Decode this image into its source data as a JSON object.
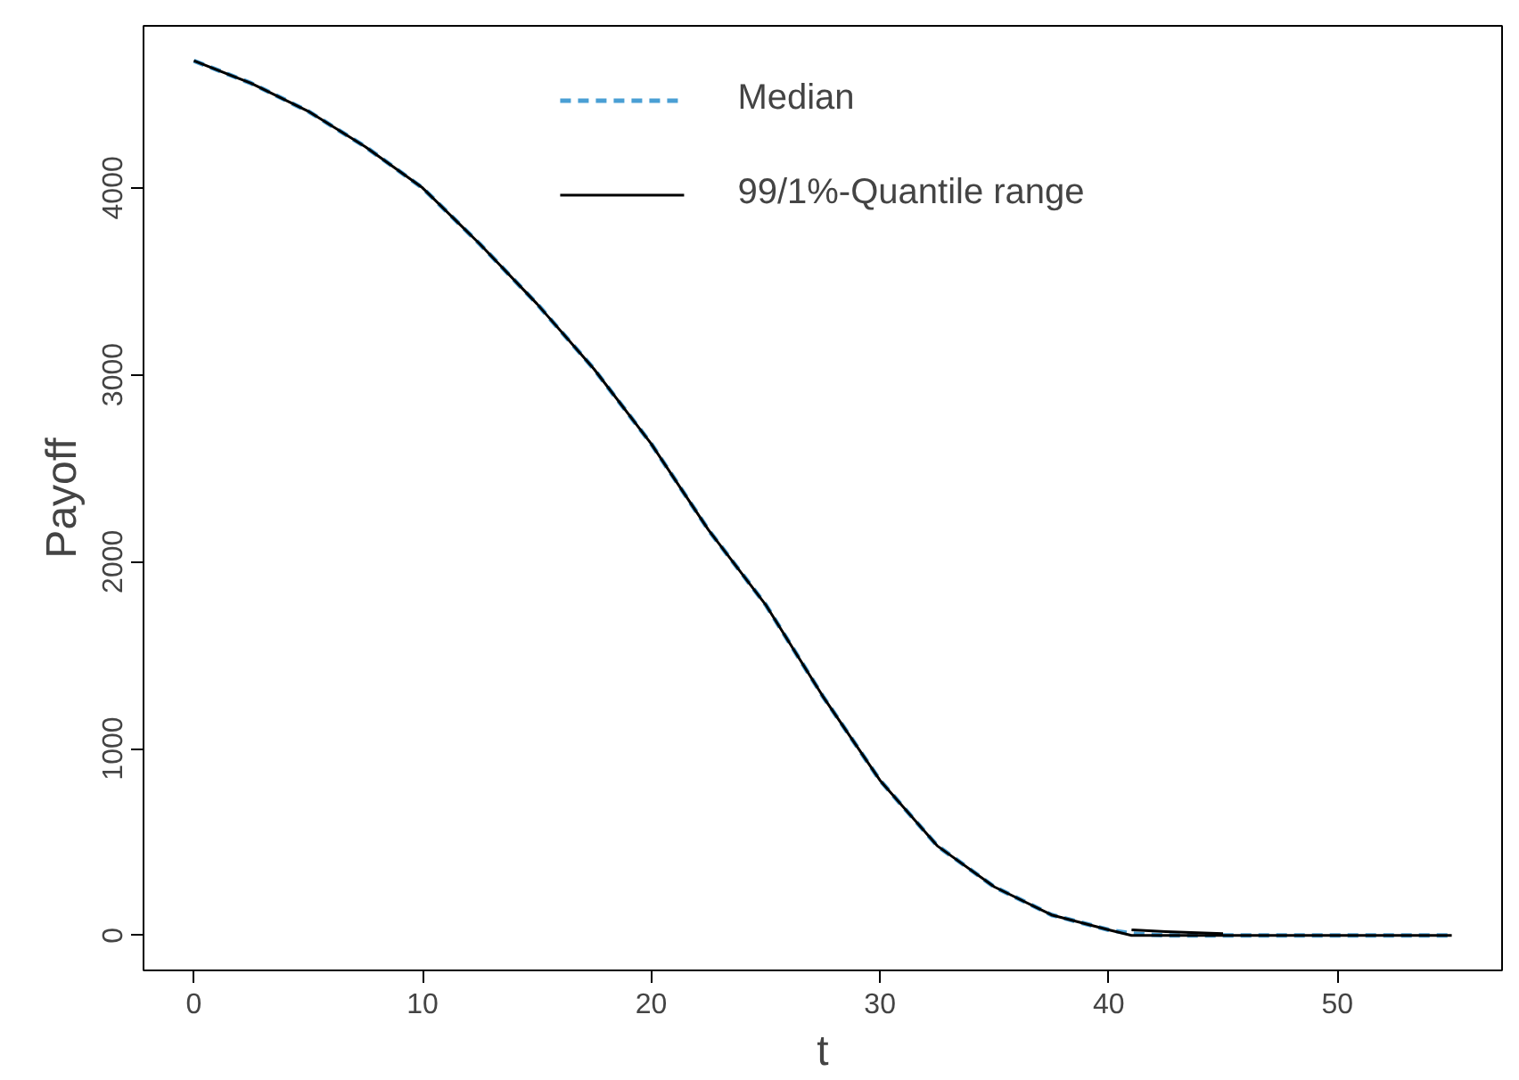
{
  "chart_data": {
    "type": "line",
    "xlabel": "t",
    "ylabel": "Payoff",
    "xlim": [
      -2.2,
      57.2
    ],
    "ylim": [
      -187,
      4867
    ],
    "xticks": [
      0,
      10,
      20,
      30,
      40,
      50
    ],
    "yticks": [
      0,
      1000,
      2000,
      3000,
      4000
    ],
    "x": [
      0,
      2.5,
      5,
      7.5,
      10,
      12.5,
      15,
      17.5,
      20,
      22.5,
      25,
      27.5,
      30,
      32.5,
      35,
      37.5,
      40,
      41,
      42.5,
      45,
      50,
      55
    ],
    "series": [
      {
        "name": "Median",
        "color": "#4a9fd4",
        "line_style": "dashed",
        "values": [
          4680,
          4560,
          4410,
          4220,
          4000,
          3700,
          3380,
          3030,
          2630,
          2170,
          1770,
          1280,
          830,
          480,
          260,
          110,
          30,
          10,
          0,
          0,
          0,
          0
        ]
      },
      {
        "name": "99/1%-Quantile range",
        "color": "#000000",
        "line_style": "solid",
        "values": [
          4680,
          4560,
          4410,
          4220,
          4000,
          3700,
          3380,
          3030,
          2630,
          2170,
          1770,
          1280,
          830,
          480,
          260,
          110,
          30,
          0,
          0,
          0,
          0,
          0
        ]
      },
      {
        "color": "#000000",
        "line_style": "solid",
        "values": [
          null,
          null,
          null,
          null,
          null,
          null,
          null,
          null,
          null,
          null,
          null,
          null,
          null,
          null,
          null,
          null,
          null,
          30,
          20,
          10,
          null,
          null
        ]
      }
    ],
    "grid": false,
    "legend": "top"
  }
}
